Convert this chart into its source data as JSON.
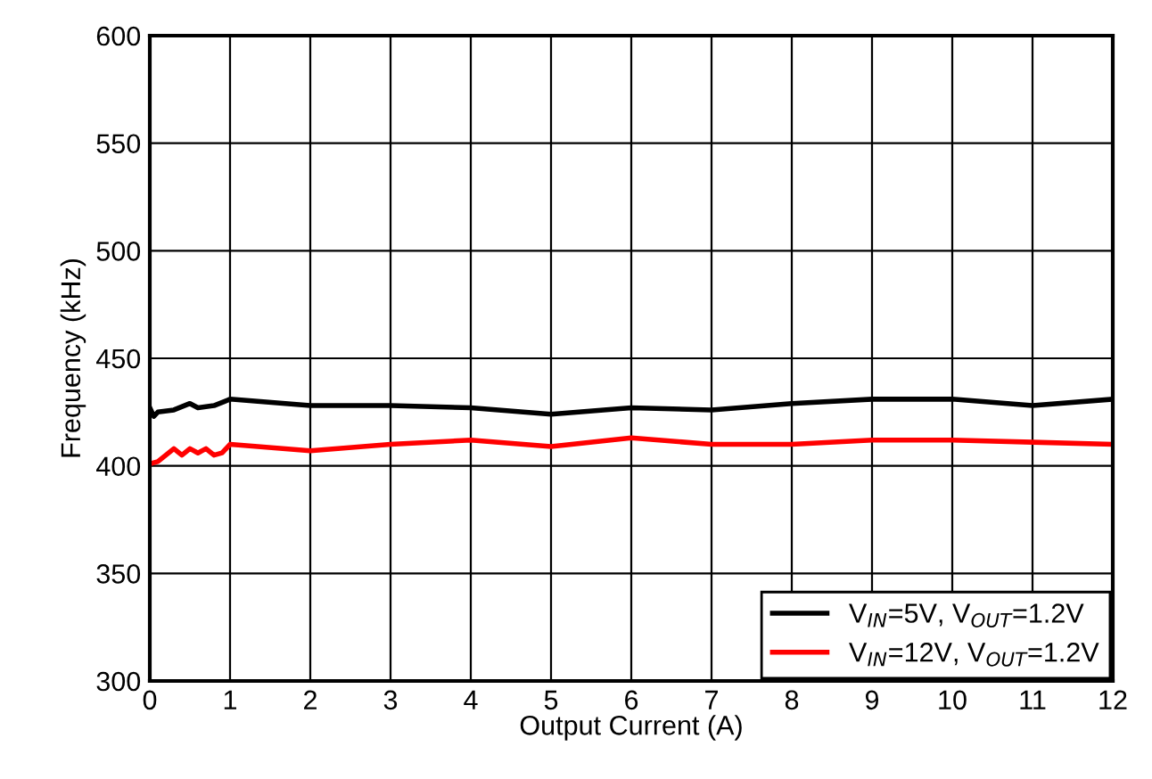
{
  "chart_data": {
    "type": "line",
    "xlabel": "Output Current (A)",
    "ylabel": "Frequency (kHz)",
    "xlim": [
      0,
      12
    ],
    "xticks": [
      0,
      1,
      2,
      3,
      4,
      5,
      6,
      7,
      8,
      9,
      10,
      11,
      12
    ],
    "ylim": [
      300,
      600
    ],
    "yticks": [
      300,
      350,
      400,
      450,
      500,
      550,
      600
    ],
    "grid": true,
    "legend": "bottom right",
    "marker": "none",
    "line_style": "solid",
    "series": [
      {
        "name": "V$_{IN}$=5V, V$_{OUT}$=1.2V",
        "color": "#000000",
        "x": [
          0,
          0.05,
          0.1,
          0.3,
          0.5,
          0.6,
          0.8,
          1,
          2,
          3,
          4,
          5,
          6,
          7,
          8,
          9,
          10,
          11,
          12
        ],
        "values": [
          427,
          423,
          425,
          426,
          429,
          427,
          428,
          431,
          428,
          428,
          427,
          424,
          427,
          426,
          429,
          431,
          431,
          428,
          431
        ]
      },
      {
        "name": "V$_{IN}$=12V, V$_{OUT}$=1.2V",
        "color": "#ff0000",
        "x": [
          0,
          0.1,
          0.2,
          0.3,
          0.4,
          0.5,
          0.6,
          0.7,
          0.8,
          0.9,
          1,
          2,
          3,
          4,
          5,
          6,
          7,
          8,
          9,
          10,
          11,
          12
        ],
        "values": [
          401,
          402,
          405,
          408,
          405,
          408,
          406,
          408,
          405,
          406,
          410,
          407,
          410,
          412,
          409,
          413,
          410,
          410,
          412,
          412,
          411,
          410
        ]
      }
    ]
  }
}
